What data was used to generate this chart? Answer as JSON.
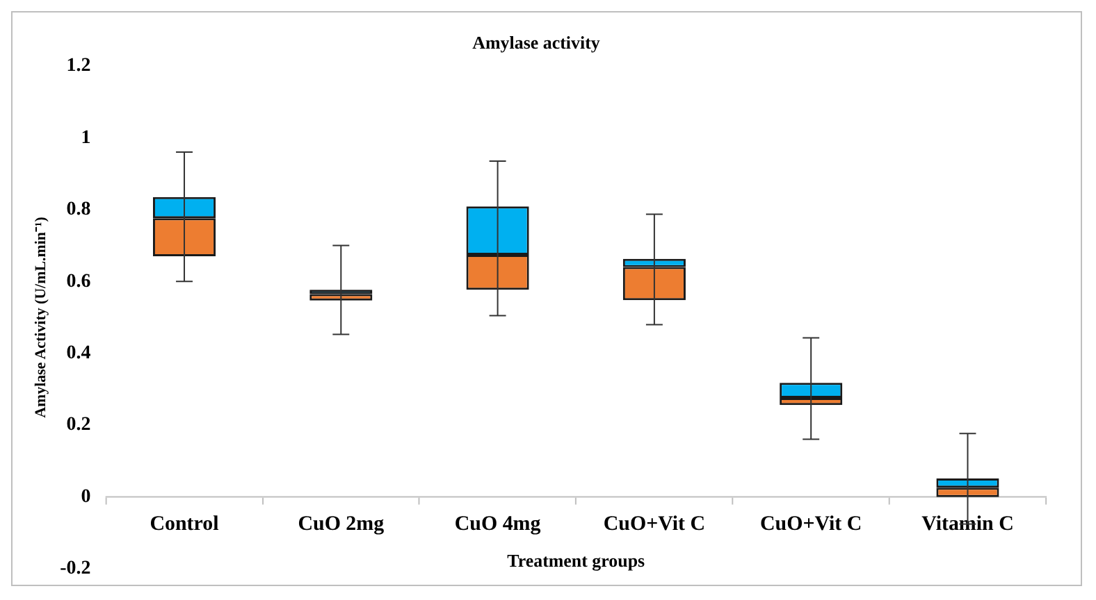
{
  "chart_data": {
    "type": "box",
    "title": "Amylase activity",
    "xlabel": "Treatment groups",
    "ylabel": "Amylase Activity (U/mL.min⁻¹)",
    "categories": [
      "Control",
      "CuO 2mg",
      "CuO 4mg",
      "CuO+Vit C",
      "CuO+Vit C",
      "Vitamin C"
    ],
    "boxes": [
      {
        "low": 0.6,
        "q1": 0.67,
        "median": 0.776,
        "q3": 0.835,
        "high": 0.96
      },
      {
        "low": 0.453,
        "q1": 0.547,
        "median": 0.565,
        "q3": 0.577,
        "high": 0.7
      },
      {
        "low": 0.505,
        "q1": 0.577,
        "median": 0.674,
        "q3": 0.809,
        "high": 0.935
      },
      {
        "low": 0.48,
        "q1": 0.548,
        "median": 0.64,
        "q3": 0.663,
        "high": 0.787
      },
      {
        "low": 0.161,
        "q1": 0.256,
        "median": 0.276,
        "q3": 0.318,
        "high": 0.443
      },
      {
        "low": -0.075,
        "q1": 0,
        "median": 0.026,
        "q3": 0.052,
        "high": 0.177
      }
    ],
    "colors": [
      [
        "#ed7d31",
        "#00b0f0"
      ],
      [
        "#ed7d31",
        "#00b0f0"
      ],
      [
        "#ed7d31",
        "#00b0f0"
      ],
      [
        "#ed7d31",
        "#00b0f0"
      ],
      [
        "#ed7d31",
        "#00b0f0"
      ],
      [
        "#ed7d31",
        "#00b0f0"
      ]
    ],
    "ylim": [
      -0.2,
      1.2
    ],
    "yticks": [
      -0.2,
      0,
      0.2,
      0.4,
      0.6,
      0.8,
      1,
      1.2
    ],
    "grid": false
  }
}
